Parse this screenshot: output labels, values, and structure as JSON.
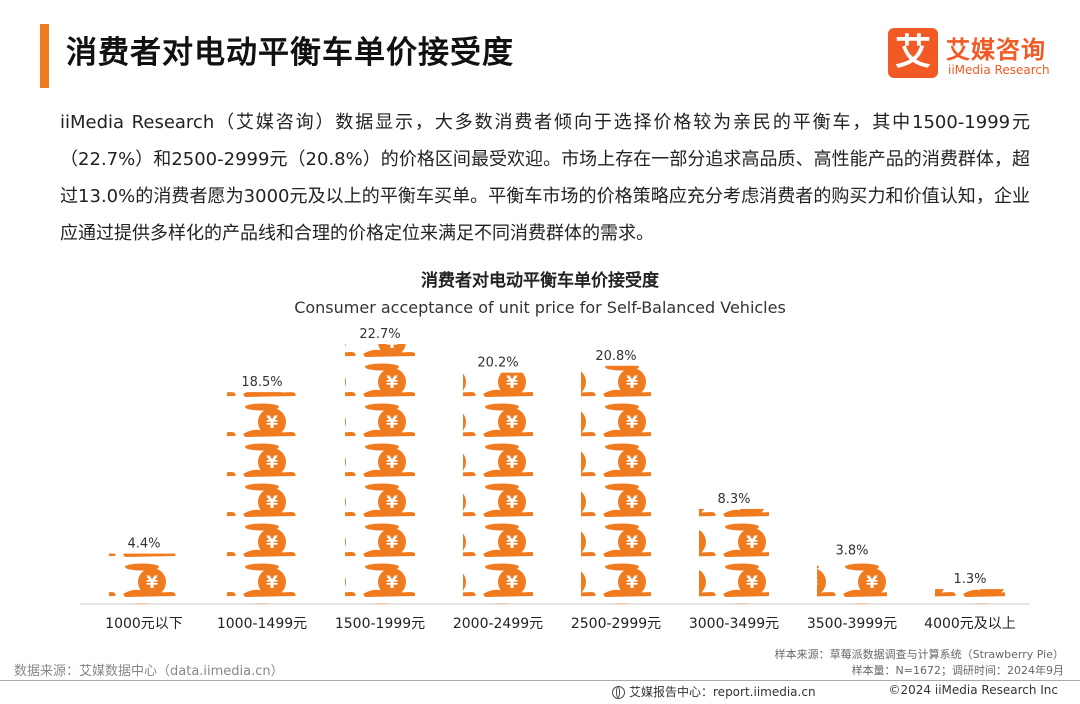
{
  "header": {
    "title": "消费者对电动平衡车单价接受度"
  },
  "logo": {
    "mark": "艾",
    "name_cn": "艾媒咨询",
    "name_en": "iiMedia Research"
  },
  "description": "iiMedia Research（艾媒咨询）数据显示，大多数消费者倾向于选择价格较为亲民的平衡车，其中1500-1999元（22.7%）和2500-2999元（20.8%）的价格区间最受欢迎。市场上存在一部分追求高品质、高性能产品的消费群体，超过13.0%的消费者愿为3000元及以上的平衡车买单。平衡车市场的价格策略应充分考虑消费者的购买力和价值认知，企业应通过提供多样化的产品线和合理的价格定位来满足不同消费群体的需求。",
  "chart_data": {
    "type": "bar",
    "title": "消费者对电动平衡车单价接受度",
    "subtitle": "Consumer acceptance of unit price for Self-Balanced Vehicles",
    "categories": [
      "1000元以下",
      "1000-1499元",
      "1500-1999元",
      "2000-2499元",
      "2500-2999元",
      "3000-3499元",
      "3500-3999元",
      "4000元及以上"
    ],
    "values": [
      4.4,
      18.5,
      22.7,
      20.2,
      20.8,
      8.3,
      3.8,
      1.3
    ],
    "value_labels": [
      "4.4%",
      "18.5%",
      "22.7%",
      "20.2%",
      "20.8%",
      "8.3%",
      "3.8%",
      "1.3%"
    ],
    "unit": "%",
    "ylim": [
      0,
      22.7
    ],
    "xlabel": "",
    "ylabel": "",
    "grid": false,
    "bar_color": "#f07a1e"
  },
  "footer": {
    "source": "数据来源：艾媒数据中心（data.iimedia.cn）",
    "sample_source": "样本来源：草莓派数据调查与计算系统（Strawberry Pie）",
    "sample_info": "样本量：N=1672；调研时间：2024年9月",
    "center_label": "艾媒报告中心：",
    "center_url": "report.iimedia.cn",
    "copyright": "©2024  iiMedia Research  Inc"
  }
}
